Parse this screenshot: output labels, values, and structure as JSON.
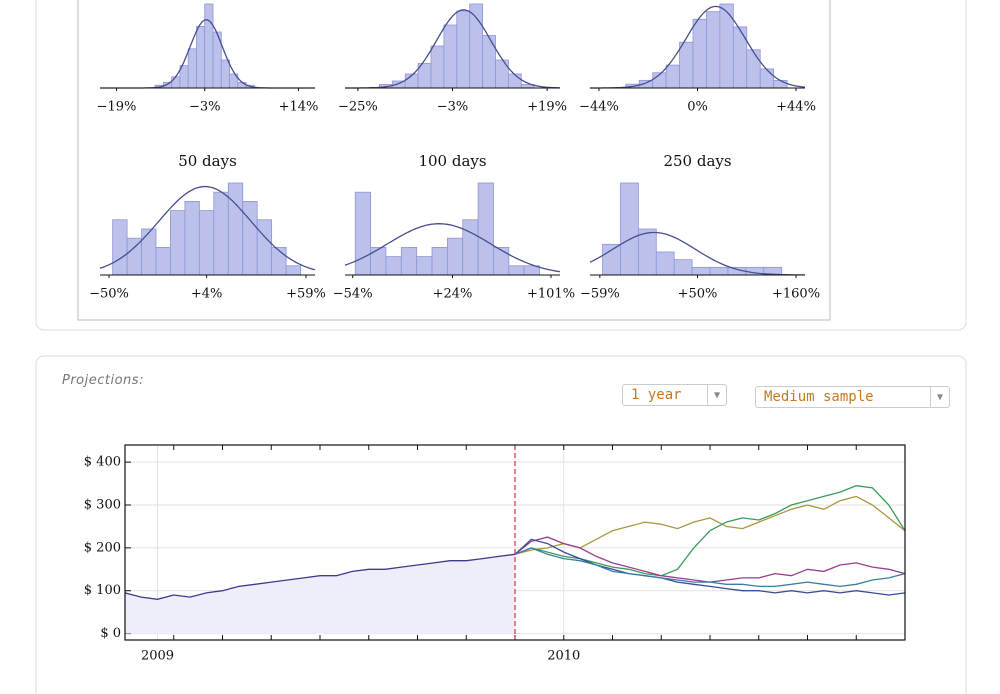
{
  "chart_data": [
    {
      "type": "histogram",
      "bins": [
        -12,
        -10.5,
        -9,
        -7.5,
        -6,
        -4.5,
        -3,
        -1.5,
        0,
        1.5,
        3,
        4.5,
        6
      ],
      "counts": [
        1,
        2,
        4,
        8,
        14,
        22,
        30,
        20,
        10,
        5,
        2,
        1
      ],
      "xlim": [
        -22,
        17
      ],
      "xticks": [
        {
          "value": -19,
          "label": "−19%"
        },
        {
          "value": -3,
          "label": "−3%"
        },
        {
          "value": 14,
          "label": "+14%"
        }
      ]
    },
    {
      "type": "histogram",
      "bins": [
        -20,
        -17,
        -14,
        -11,
        -8,
        -5,
        -2,
        1,
        4,
        7,
        10,
        13,
        16
      ],
      "counts": [
        1,
        2,
        4,
        7,
        12,
        18,
        22,
        24,
        15,
        8,
        4,
        1
      ],
      "xlim": [
        -28,
        22
      ],
      "xticks": [
        {
          "value": -25,
          "label": "−25%"
        },
        {
          "value": -3,
          "label": "−3%"
        },
        {
          "value": 19,
          "label": "+19%"
        }
      ]
    },
    {
      "type": "histogram",
      "bins": [
        -32,
        -26,
        -20,
        -14,
        -8,
        -2,
        4,
        10,
        16,
        22,
        28,
        34,
        40
      ],
      "counts": [
        1,
        2,
        4,
        6,
        12,
        18,
        20,
        22,
        16,
        10,
        5,
        2
      ],
      "xlim": [
        -48,
        48
      ],
      "xticks": [
        {
          "value": -44,
          "label": "−44%"
        },
        {
          "value": 0,
          "label": "0%"
        },
        {
          "value": 44,
          "label": "+44%"
        }
      ]
    },
    {
      "type": "histogram",
      "title": "50 days",
      "bins": [
        -48,
        -40,
        -32,
        -24,
        -16,
        -8,
        0,
        8,
        16,
        24,
        32,
        40,
        48,
        56
      ],
      "counts": [
        6,
        4,
        5,
        3,
        7,
        8,
        7,
        9,
        10,
        8,
        6,
        3,
        1
      ],
      "xlim": [
        -55,
        64
      ],
      "xticks": [
        {
          "value": -50,
          "label": "−50%"
        },
        {
          "value": 4,
          "label": "+4%"
        },
        {
          "value": 59,
          "label": "+59%"
        }
      ]
    },
    {
      "type": "histogram",
      "title": "100 days",
      "bins": [
        -52,
        -40,
        -28,
        -16,
        -4,
        8,
        20,
        32,
        44,
        56,
        68,
        80,
        92
      ],
      "counts": [
        9,
        3,
        2,
        3,
        2,
        3,
        4,
        6,
        10,
        3,
        1,
        1
      ],
      "xlim": [
        -60,
        108
      ],
      "xticks": [
        {
          "value": -54,
          "label": "−54%"
        },
        {
          "value": 24,
          "label": "+24%"
        },
        {
          "value": 101,
          "label": "+101%"
        }
      ]
    },
    {
      "type": "histogram",
      "title": "250 days",
      "bins": [
        -56,
        -36,
        -16,
        4,
        24,
        44,
        64,
        84,
        104,
        124,
        144
      ],
      "counts": [
        4,
        12,
        6,
        3,
        2,
        1,
        1,
        1,
        1,
        1
      ],
      "xlim": [
        -70,
        170
      ],
      "xticks": [
        {
          "value": -59,
          "label": "−59%"
        },
        {
          "value": 50,
          "label": "+50%"
        },
        {
          "value": 160,
          "label": "+160%"
        }
      ]
    },
    {
      "type": "line",
      "categories": [
        null,
        null,
        "2009",
        null,
        null,
        null,
        null,
        null,
        null,
        null,
        null,
        null,
        null,
        null,
        null,
        null,
        null,
        null,
        null,
        null,
        null,
        null,
        null,
        null,
        null,
        null,
        null,
        "2010",
        null,
        null,
        null,
        null,
        null,
        null,
        null,
        null,
        null,
        null,
        null,
        null,
        null,
        null,
        null,
        null,
        null,
        null,
        null,
        null,
        null
      ],
      "ylim": [
        -15,
        440
      ],
      "yticks": [
        {
          "value": 0,
          "label": "$ 0"
        },
        {
          "value": 100,
          "label": "$ 100"
        },
        {
          "value": 200,
          "label": "$ 200"
        },
        {
          "value": 300,
          "label": "$ 300"
        },
        {
          "value": 400,
          "label": "$ 400"
        }
      ],
      "grid": true,
      "series": [
        {
          "color": "#3b3b8f",
          "values": [
            95,
            85,
            80,
            90,
            85,
            95,
            100,
            110,
            115,
            120,
            125,
            130,
            135,
            135,
            145,
            150,
            150,
            155,
            160,
            165,
            170,
            170,
            175,
            180,
            185,
            null,
            null,
            null,
            null,
            null,
            null,
            null,
            null,
            null,
            null,
            null,
            null,
            null,
            null,
            null,
            null,
            null,
            null,
            null,
            null,
            null,
            null,
            null,
            null
          ]
        },
        {
          "color": "#a8963c",
          "values": [
            null,
            null,
            null,
            null,
            null,
            null,
            null,
            null,
            null,
            null,
            null,
            null,
            null,
            null,
            null,
            null,
            null,
            null,
            null,
            null,
            null,
            null,
            null,
            null,
            185,
            195,
            200,
            210,
            200,
            220,
            240,
            250,
            260,
            255,
            245,
            260,
            270,
            250,
            245,
            260,
            275,
            290,
            300,
            290,
            310,
            320,
            300,
            270,
            240
          ]
        },
        {
          "color": "#3a9a5a",
          "values": [
            null,
            null,
            null,
            null,
            null,
            null,
            null,
            null,
            null,
            null,
            null,
            null,
            null,
            null,
            null,
            null,
            null,
            null,
            null,
            null,
            null,
            null,
            null,
            null,
            185,
            200,
            190,
            180,
            175,
            165,
            155,
            150,
            140,
            135,
            150,
            200,
            240,
            260,
            270,
            265,
            280,
            300,
            310,
            320,
            330,
            345,
            340,
            300,
            240
          ]
        },
        {
          "color": "#9a3c8f",
          "values": [
            null,
            null,
            null,
            null,
            null,
            null,
            null,
            null,
            null,
            null,
            null,
            null,
            null,
            null,
            null,
            null,
            null,
            null,
            null,
            null,
            null,
            null,
            null,
            null,
            185,
            215,
            225,
            210,
            200,
            180,
            165,
            155,
            145,
            135,
            130,
            125,
            120,
            125,
            130,
            130,
            140,
            135,
            150,
            145,
            160,
            165,
            155,
            150,
            140
          ]
        },
        {
          "color": "#3c4a9a",
          "values": [
            null,
            null,
            null,
            null,
            null,
            null,
            null,
            null,
            null,
            null,
            null,
            null,
            null,
            null,
            null,
            null,
            null,
            null,
            null,
            null,
            null,
            null,
            null,
            null,
            185,
            220,
            210,
            190,
            175,
            160,
            150,
            140,
            135,
            130,
            120,
            115,
            110,
            105,
            100,
            100,
            95,
            100,
            95,
            100,
            95,
            100,
            95,
            90,
            95
          ]
        },
        {
          "color": "#3a7fa0",
          "values": [
            null,
            null,
            null,
            null,
            null,
            null,
            null,
            null,
            null,
            null,
            null,
            null,
            null,
            null,
            null,
            null,
            null,
            null,
            null,
            null,
            null,
            null,
            null,
            null,
            185,
            200,
            185,
            175,
            170,
            160,
            145,
            140,
            135,
            130,
            125,
            120,
            120,
            115,
            115,
            110,
            110,
            115,
            120,
            115,
            110,
            115,
            125,
            130,
            140
          ]
        }
      ]
    }
  ],
  "heading": "Projections:",
  "controls": [
    "1 year",
    "Medium sample"
  ]
}
